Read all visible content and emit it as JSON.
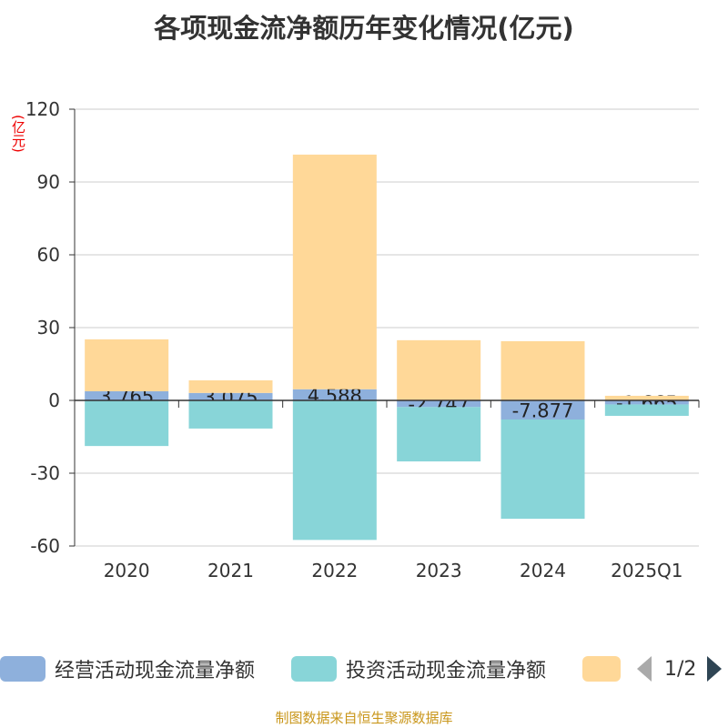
{
  "title": "各项现金流净额历年变化情况(亿元)",
  "unit": "(亿元)",
  "source": "制图数据来自恒生聚源数据库",
  "legend_page": "1/2",
  "chart_data": {
    "type": "bar",
    "stacked": true,
    "categories": [
      "2020",
      "2021",
      "2022",
      "2023",
      "2024",
      "2025Q1"
    ],
    "ylim": [
      -60,
      120
    ],
    "yticks": [
      120,
      90,
      60,
      30,
      0,
      -30,
      -60
    ],
    "grid": true,
    "legend_position": "bottom",
    "series": [
      {
        "name": "经营活动现金流量净额",
        "color": "#8eb0dc",
        "values": [
          3.765,
          3.075,
          4.588,
          -2.747,
          -7.877,
          -1.665
        ],
        "labels": [
          "3.765",
          "3.075",
          "4.588",
          "-2.747",
          "-7.877",
          "-1.665"
        ]
      },
      {
        "name": "投资活动现金流量净额",
        "color": "#88d5d8",
        "values": [
          -18.8,
          -11.6,
          -57.5,
          -22.4,
          -40.9,
          -4.7
        ]
      },
      {
        "name": "",
        "color": "#ffd898",
        "values": [
          21.4,
          5.2,
          96.7,
          24.8,
          24.4,
          1.9
        ]
      }
    ]
  }
}
